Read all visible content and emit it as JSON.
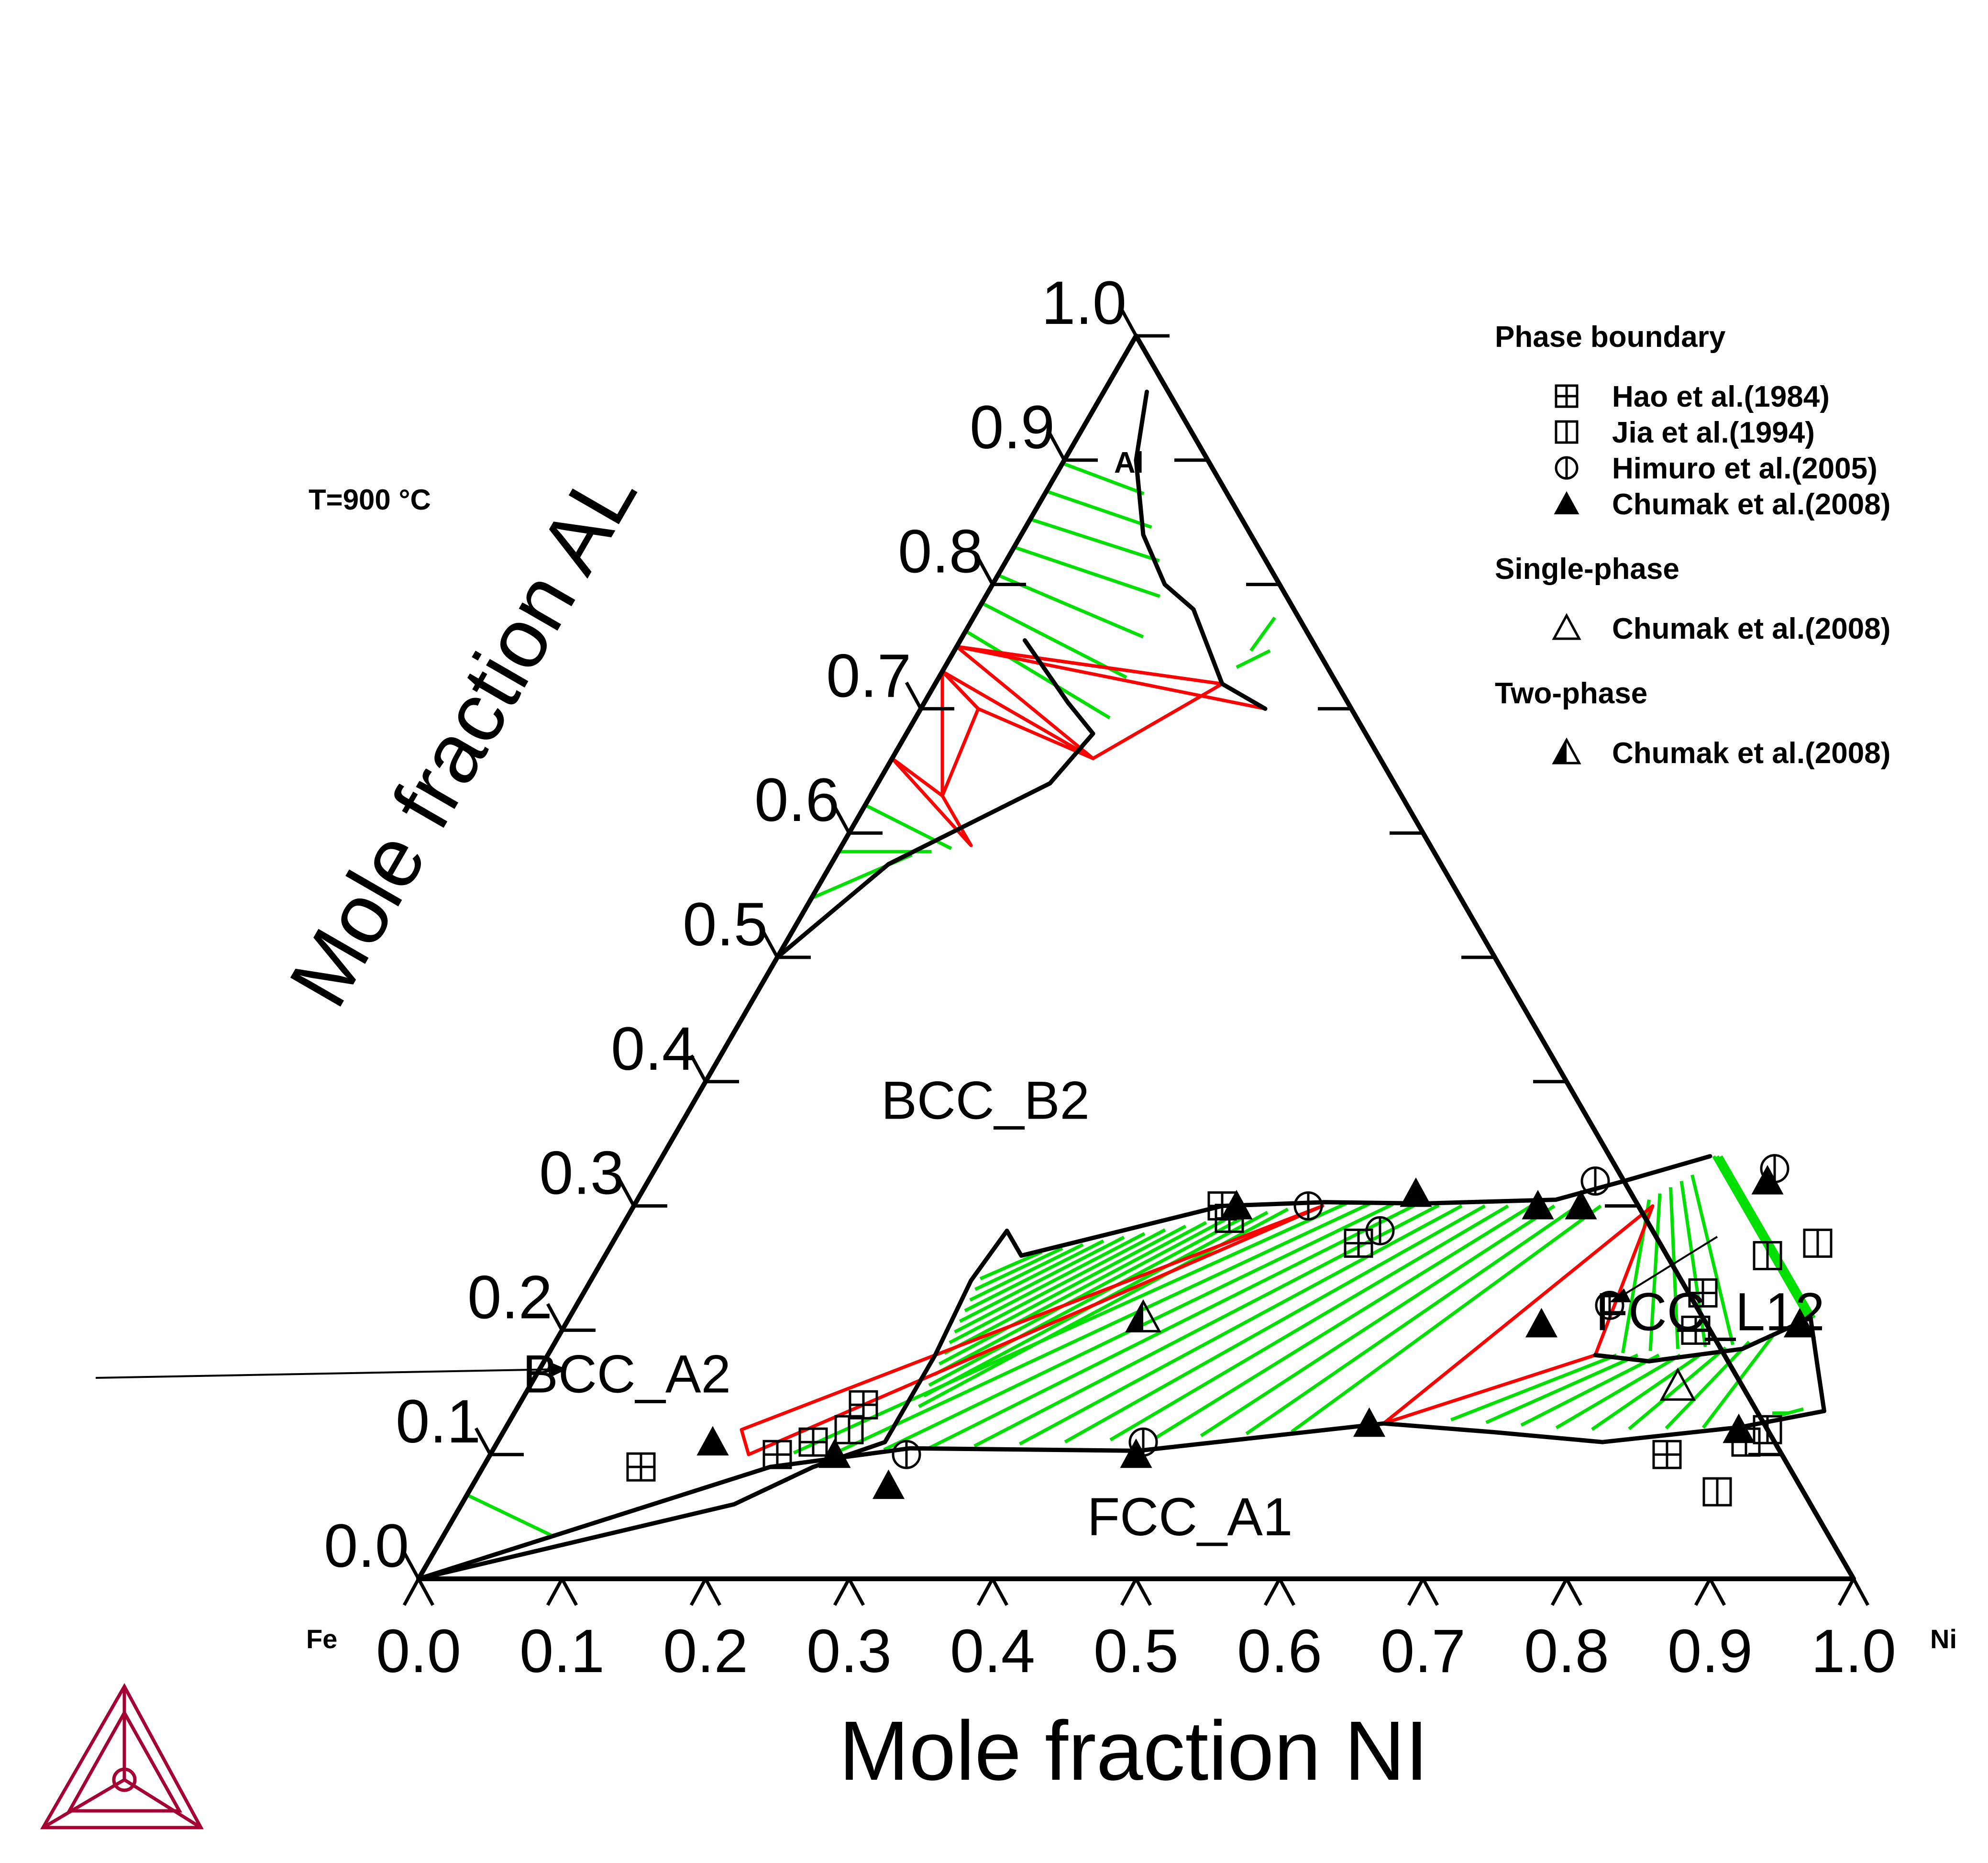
{
  "chart_data": {
    "type": "ternary",
    "temperature_label": "T=900 °C",
    "corners": {
      "left": "Fe",
      "right": "Ni",
      "top": "Al"
    },
    "xlabel": "Mole fraction NI",
    "ylabel": "Mole fraction AL",
    "ticks": [
      "0.0",
      "0.1",
      "0.2",
      "0.3",
      "0.4",
      "0.5",
      "0.6",
      "0.7",
      "0.8",
      "0.9",
      "1.0"
    ],
    "colors": {
      "boundary": "#000000",
      "tie_line": "#00e000",
      "tie_triangle": "#ff0000",
      "logo": "#a50034"
    },
    "region_labels": [
      {
        "text": "BCC_B2",
        "xNi": 0.21,
        "xAl": 0.37
      },
      {
        "text": "FCC_A1",
        "xNi": 0.52,
        "xAl": 0.035
      },
      {
        "text": "FCC_L12",
        "xNi": 0.8,
        "xAl": 0.2
      },
      {
        "text": "BCC_A2",
        "xNi": 0.07,
        "xAl": 0.15
      },
      {
        "text": "Al",
        "xNi": 0.05,
        "xAl": 0.89
      }
    ],
    "boundaries": [
      [
        [
          0.03,
          0.955
        ],
        [
          0.05,
          0.9
        ],
        [
          0.085,
          0.84
        ],
        [
          0.12,
          0.8
        ],
        [
          0.15,
          0.78
        ]
      ],
      [
        [
          0.15,
          0.78
        ],
        [
          0.2,
          0.72
        ],
        [
          0.24,
          0.7
        ]
      ],
      [
        [
          0.045,
          0.755
        ],
        [
          0.1,
          0.705
        ],
        [
          0.13,
          0.68
        ]
      ],
      [
        [
          0.13,
          0.68
        ],
        [
          0.12,
          0.64
        ],
        [
          0.04,
          0.575
        ],
        [
          0.0,
          0.5
        ]
      ],
      [
        [
          0.27,
          0.28
        ],
        [
          0.29,
          0.26
        ],
        [
          0.35,
          0.28
        ],
        [
          0.41,
          0.3
        ],
        [
          0.48,
          0.303
        ],
        [
          0.55,
          0.302
        ],
        [
          0.64,
          0.305
        ],
        [
          0.68,
          0.32
        ],
        [
          0.73,
          0.34
        ]
      ],
      [
        [
          0.27,
          0.28
        ],
        [
          0.265,
          0.24
        ],
        [
          0.27,
          0.18
        ],
        [
          0.27,
          0.13
        ],
        [
          0.27,
          0.11
        ],
        [
          0.23,
          0.09
        ],
        [
          0.19,
          0.06
        ],
        [
          0.0,
          0.0
        ]
      ],
      [
        [
          0.0,
          0.0
        ],
        [
          0.2,
          0.09
        ],
        [
          0.29,
          0.105
        ],
        [
          0.45,
          0.103
        ],
        [
          0.61,
          0.125
        ],
        [
          0.69,
          0.118
        ],
        [
          0.77,
          0.11
        ],
        [
          0.86,
          0.122
        ],
        [
          0.912,
          0.135
        ]
      ],
      [
        [
          0.73,
          0.18
        ],
        [
          0.77,
          0.175
        ],
        [
          0.83,
          0.185
        ],
        [
          0.865,
          0.21
        ]
      ],
      [
        [
          0.912,
          0.135
        ],
        [
          0.89,
          0.17
        ],
        [
          0.865,
          0.21
        ]
      ]
    ],
    "tie_triangles": [
      [
        [
          0.0,
          0.75
        ],
        [
          0.2,
          0.72
        ],
        [
          0.24,
          0.7
        ]
      ],
      [
        [
          0.0,
          0.75
        ],
        [
          0.2,
          0.72
        ],
        [
          0.14,
          0.66
        ]
      ],
      [
        [
          0.0,
          0.73
        ],
        [
          0.04,
          0.7
        ],
        [
          0.14,
          0.66
        ]
      ],
      [
        [
          0.0,
          0.73
        ],
        [
          0.04,
          0.7
        ],
        [
          0.05,
          0.63
        ]
      ],
      [
        [
          0.0,
          0.66
        ],
        [
          0.09,
          0.59
        ],
        [
          0.05,
          0.63
        ]
      ],
      [
        [
          0.165,
          0.12
        ],
        [
          0.18,
          0.1
        ],
        [
          0.48,
          0.3
        ]
      ],
      [
        [
          0.61,
          0.125
        ],
        [
          0.73,
          0.18
        ],
        [
          0.71,
          0.3
        ]
      ]
    ],
    "series": [
      {
        "name": "Hao et al.(1984)",
        "marker": "square-plus",
        "points": [
          [
            0.11,
            0.09
          ],
          [
            0.2,
            0.1
          ],
          [
            0.22,
            0.11
          ],
          [
            0.24,
            0.14
          ],
          [
            0.41,
            0.3
          ],
          [
            0.42,
            0.29
          ],
          [
            0.52,
            0.27
          ],
          [
            0.79,
            0.2
          ],
          [
            0.78,
            0.23
          ],
          [
            0.82,
            0.1
          ]
        ]
      },
      {
        "name": "Jia et al.(1994)",
        "marker": "square-bar",
        "points": [
          [
            0.24,
            0.12
          ],
          [
            0.81,
            0.26
          ],
          [
            0.84,
            0.27
          ],
          [
            0.88,
            0.12
          ],
          [
            0.87,
            0.11
          ],
          [
            0.87,
            0.07
          ]
        ]
      },
      {
        "name": "Himuro et al.(2005)",
        "marker": "circle-bar",
        "points": [
          [
            0.29,
            0.1
          ],
          [
            0.45,
            0.11
          ],
          [
            0.47,
            0.3
          ],
          [
            0.53,
            0.28
          ],
          [
            0.66,
            0.32
          ],
          [
            0.78,
            0.33
          ],
          [
            0.72,
            0.22
          ]
        ]
      },
      {
        "name": "Chumak et al.(2008)",
        "marker": "triangle-filled",
        "points": [
          [
            0.15,
            0.11
          ],
          [
            0.24,
            0.1
          ],
          [
            0.29,
            0.075
          ],
          [
            0.45,
            0.1
          ],
          [
            0.6,
            0.125
          ],
          [
            0.68,
            0.205
          ],
          [
            0.66,
            0.3
          ],
          [
            0.42,
            0.3
          ],
          [
            0.54,
            0.31
          ],
          [
            0.63,
            0.3
          ],
          [
            0.86,
            0.205
          ],
          [
            0.78,
            0.32
          ],
          [
            0.86,
            0.12
          ]
        ]
      },
      {
        "name": "Chumak et al.(2008)",
        "marker": "triangle-open",
        "points": [
          [
            0.8,
            0.155
          ]
        ]
      },
      {
        "name": "Chumak et al.(2008)",
        "marker": "triangle-half",
        "points": [
          [
            0.4,
            0.21
          ]
        ]
      }
    ],
    "legend": {
      "sections": [
        {
          "title": "Phase boundary",
          "items": [
            {
              "marker": "square-plus",
              "label": "Hao et al.(1984)"
            },
            {
              "marker": "square-bar",
              "label": "Jia et al.(1994)"
            },
            {
              "marker": "circle-bar",
              "label": "Himuro et al.(2005)"
            },
            {
              "marker": "triangle-filled",
              "label": "Chumak et al.(2008)"
            }
          ]
        },
        {
          "title": "Single-phase",
          "items": [
            {
              "marker": "triangle-open",
              "label": "Chumak et al.(2008)"
            }
          ]
        },
        {
          "title": "Two-phase",
          "items": [
            {
              "marker": "triangle-half",
              "label": "Chumak et al.(2008)"
            }
          ]
        }
      ],
      "placement": "top-right"
    },
    "grid": false
  }
}
